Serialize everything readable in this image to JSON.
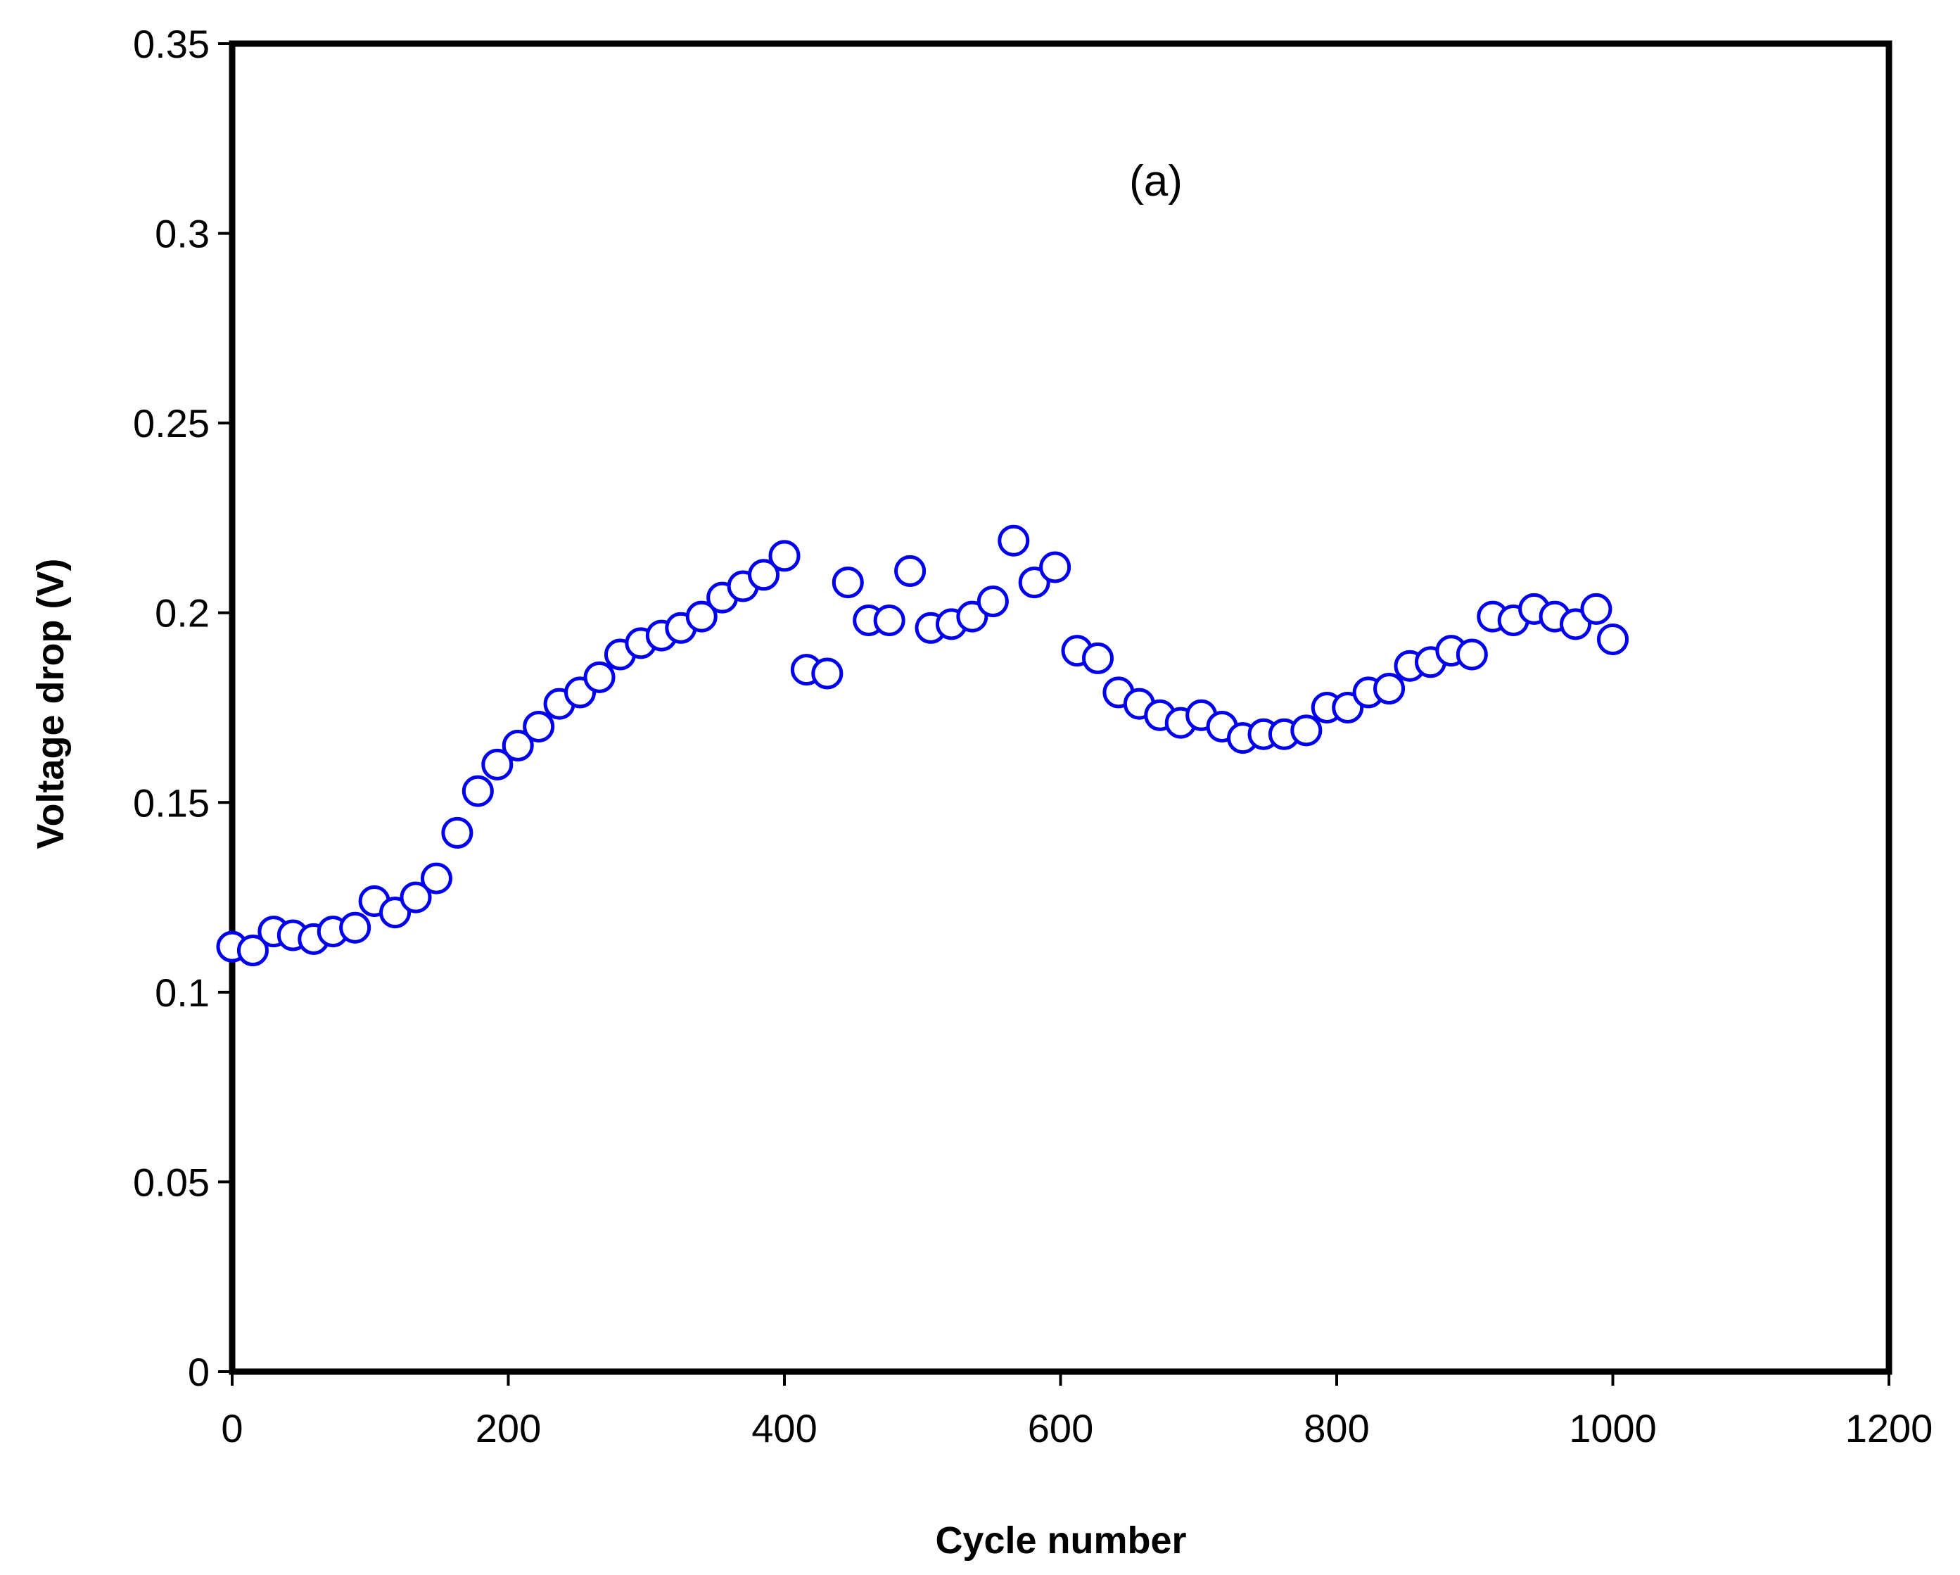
{
  "chart_data": {
    "type": "scatter",
    "title": "",
    "annotation": "(a)",
    "xlabel": "Cycle number",
    "ylabel": "Voltage drop (V)",
    "xlim": [
      0,
      1200
    ],
    "ylim": [
      0,
      0.35
    ],
    "x_ticks": [
      0,
      200,
      400,
      600,
      800,
      1000,
      1200
    ],
    "x_tick_labels": [
      "0",
      "200",
      "400",
      "600",
      "800",
      "1000",
      "1200"
    ],
    "y_ticks": [
      0,
      0.05,
      0.1,
      0.15,
      0.2,
      0.25,
      0.3,
      0.35
    ],
    "y_tick_labels": [
      "0",
      "0.05",
      "0.1",
      "0.15",
      "0.2",
      "0.25",
      "0.3",
      "0.35"
    ],
    "grid": false,
    "marker": "open-circle",
    "colors": {
      "marker": "#0000ee",
      "axis": "#000000",
      "background": "#ffffff"
    },
    "series": [
      {
        "name": "Voltage drop",
        "x": [
          0,
          15,
          30,
          44,
          59,
          73,
          89,
          103,
          118,
          133,
          148,
          163,
          178,
          192,
          207,
          222,
          237,
          252,
          266,
          281,
          296,
          311,
          325,
          340,
          355,
          370,
          385,
          400,
          416,
          431,
          446,
          461,
          476,
          491,
          506,
          521,
          536,
          551,
          566,
          581,
          596,
          612,
          627,
          642,
          657,
          672,
          687,
          702,
          717,
          732,
          747,
          762,
          778,
          793,
          808,
          823,
          838,
          853,
          868,
          883,
          898,
          913,
          928,
          943,
          958,
          973,
          988,
          1000
        ],
        "y": [
          0.112,
          0.111,
          0.116,
          0.115,
          0.114,
          0.116,
          0.117,
          0.124,
          0.121,
          0.125,
          0.13,
          0.142,
          0.153,
          0.16,
          0.165,
          0.17,
          0.176,
          0.179,
          0.183,
          0.189,
          0.192,
          0.194,
          0.196,
          0.199,
          0.204,
          0.207,
          0.21,
          0.215,
          0.185,
          0.184,
          0.208,
          0.198,
          0.198,
          0.211,
          0.196,
          0.197,
          0.199,
          0.203,
          0.219,
          0.208,
          0.212,
          0.19,
          0.188,
          0.179,
          0.176,
          0.173,
          0.171,
          0.173,
          0.17,
          0.167,
          0.168,
          0.168,
          0.169,
          0.175,
          0.175,
          0.179,
          0.18,
          0.186,
          0.187,
          0.19,
          0.189,
          0.199,
          0.198,
          0.201,
          0.199,
          0.197,
          0.201,
          0.193
        ]
      }
    ]
  }
}
